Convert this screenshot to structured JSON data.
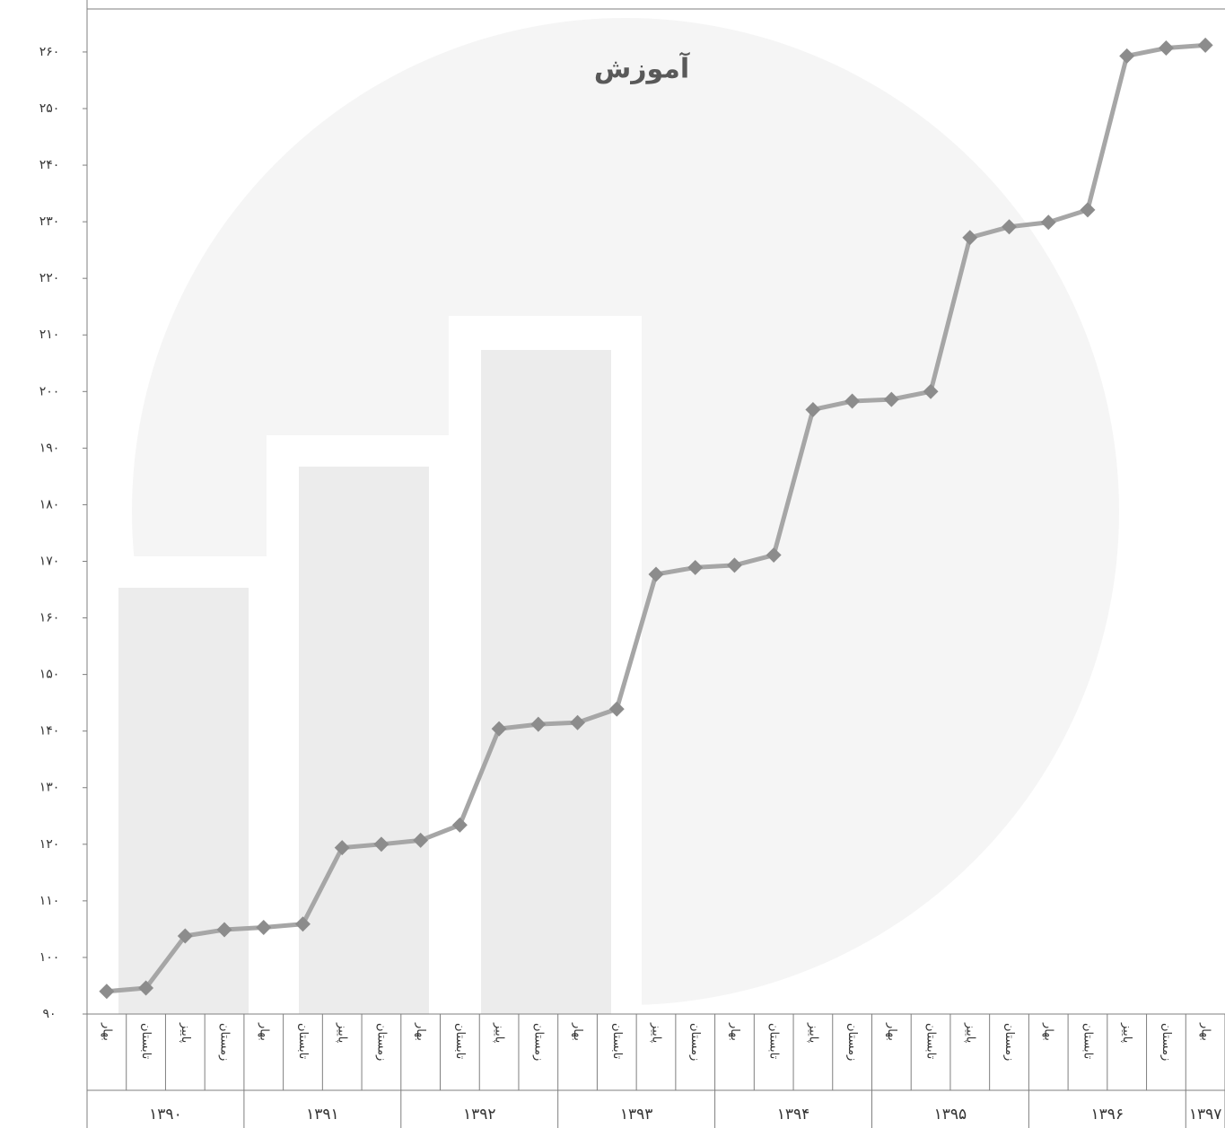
{
  "chart_data": {
    "type": "line",
    "title": "آموزش",
    "category_groups": [
      {
        "label": "۱۳۹۰",
        "categories": [
          "بهار",
          "تابستان",
          "پاییز",
          "زمستان"
        ]
      },
      {
        "label": "۱۳۹۱",
        "categories": [
          "بهار",
          "تابستان",
          "پاییز",
          "زمستان"
        ]
      },
      {
        "label": "۱۳۹۲",
        "categories": [
          "بهار",
          "تابستان",
          "پاییز",
          "زمستان"
        ]
      },
      {
        "label": "۱۳۹۳",
        "categories": [
          "بهار",
          "تابستان",
          "پاییز",
          "زمستان"
        ]
      },
      {
        "label": "۱۳۹۴",
        "categories": [
          "بهار",
          "تابستان",
          "پاییز",
          "زمستان"
        ]
      },
      {
        "label": "۱۳۹۵",
        "categories": [
          "بهار",
          "تابستان",
          "پاییز",
          "زمستان"
        ]
      },
      {
        "label": "۱۳۹۶",
        "categories": [
          "بهار",
          "تابستان",
          "پاییز",
          "زمستان"
        ]
      },
      {
        "label": "۱۳۹۷",
        "categories": [
          "بهار"
        ]
      }
    ],
    "series": [
      {
        "color": "#a6a6a6",
        "values": [
          94,
          94.6,
          103.8,
          104.9,
          105.3,
          105.9,
          119.4,
          120,
          120.7,
          123.4,
          140.4,
          141.2,
          141.5,
          143.9,
          167.7,
          168.9,
          169.3,
          171.1,
          196.8,
          198.3,
          198.6,
          200,
          227.2,
          229.1,
          229.9,
          232.1,
          259.3,
          260.7,
          261.2
        ]
      }
    ],
    "marker_color": "#8c8c8c",
    "ylim": [
      90,
      267.6
    ],
    "yticks": [
      {
        "value": 90,
        "label": "۹۰"
      },
      {
        "value": 100,
        "label": "۱۰۰"
      },
      {
        "value": 110,
        "label": "۱۱۰"
      },
      {
        "value": 120,
        "label": "۱۲۰"
      },
      {
        "value": 130,
        "label": "۱۳۰"
      },
      {
        "value": 140,
        "label": "۱۴۰"
      },
      {
        "value": 150,
        "label": "۱۵۰"
      },
      {
        "value": 160,
        "label": "۱۶۰"
      },
      {
        "value": 170,
        "label": "۱۷۰"
      },
      {
        "value": 180,
        "label": "۱۸۰"
      },
      {
        "value": 190,
        "label": "۱۹۰"
      },
      {
        "value": 200,
        "label": "۲۰۰"
      },
      {
        "value": 210,
        "label": "۲۱۰"
      },
      {
        "value": 220,
        "label": "۲۲۰"
      },
      {
        "value": 230,
        "label": "۲۳۰"
      },
      {
        "value": 240,
        "label": "۲۴۰"
      },
      {
        "value": 250,
        "label": "۲۵۰"
      },
      {
        "value": 260,
        "label": "۲۶۰"
      }
    ],
    "grid": false
  }
}
